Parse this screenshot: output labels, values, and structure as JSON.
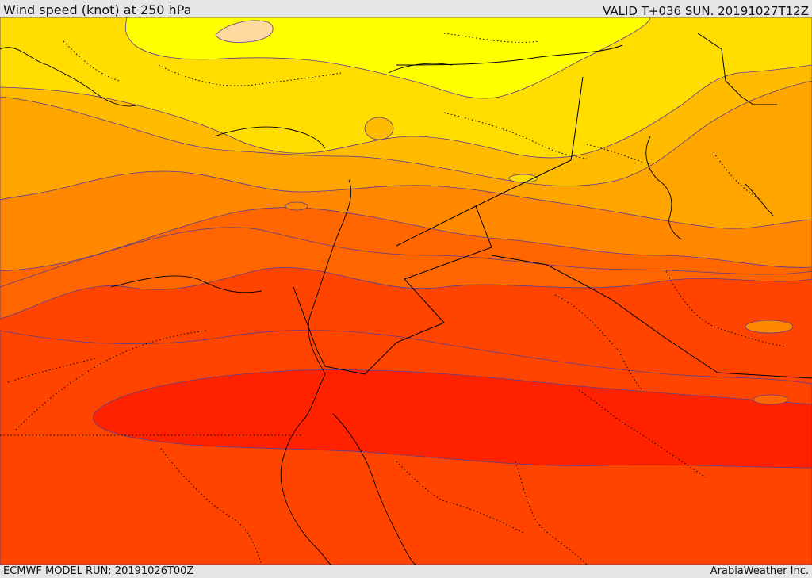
{
  "header": {
    "title": "Wind speed (knot) at 250 hPa",
    "valid_time": "VALID T+036 SUN. 20191027T12Z"
  },
  "footer": {
    "model_run": "ECMWF MODEL RUN: 20191026T00Z",
    "credit": "ArabiaWeather Inc."
  },
  "colors": {
    "band_pale": "#ffdaa0",
    "band_yellow": "#ffff00",
    "band_gold": "#ffdd00",
    "band_amber": "#ffbb00",
    "band_orange_light": "#ffa500",
    "band_orange": "#ff8800",
    "band_orange_dark": "#ff6600",
    "band_red_orange": "#ff4400",
    "band_red": "#ff2200",
    "border_line": "#000000",
    "contour_line": "#5a3c8c"
  }
}
